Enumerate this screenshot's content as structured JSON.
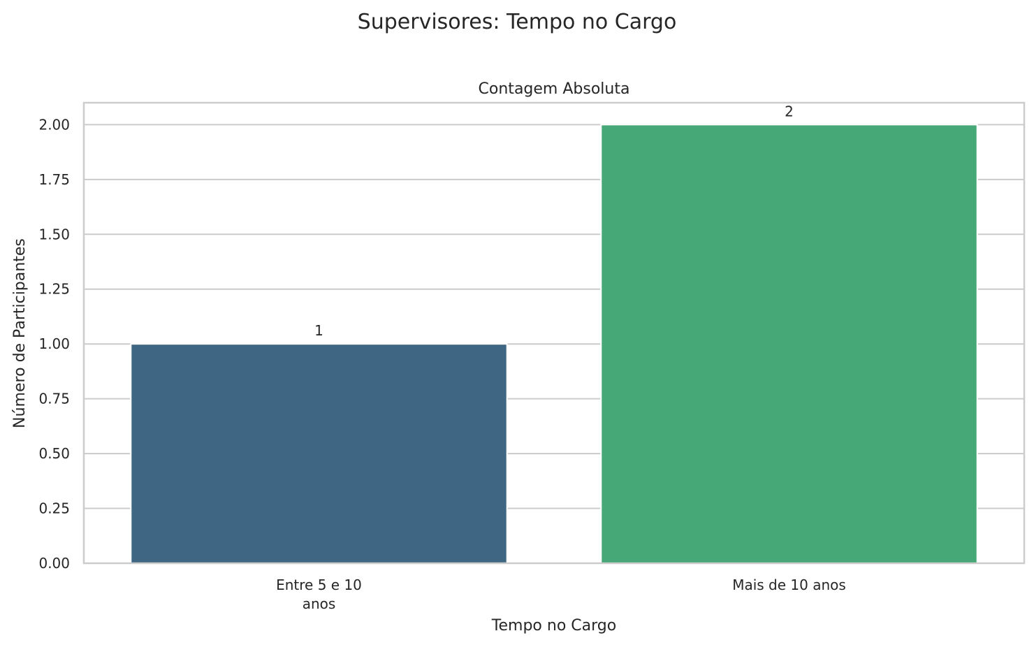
{
  "chart_data": {
    "type": "bar",
    "suptitle": "Supervisores: Tempo no Cargo",
    "title": "Contagem Absoluta",
    "xlabel": "Tempo no Cargo",
    "ylabel": "Número de Participantes",
    "categories": [
      [
        "Entre 5 e 10",
        "anos"
      ],
      [
        "Mais de 10 anos"
      ]
    ],
    "values": [
      1,
      2
    ],
    "data_labels": [
      "1",
      "2"
    ],
    "colors": [
      "#3f6783",
      "#46a877"
    ],
    "ylim": [
      0,
      2.1
    ],
    "yticks": [
      0,
      0.25,
      0.5,
      0.75,
      1.0,
      1.25,
      1.5,
      1.75,
      2.0
    ],
    "ytick_labels": [
      "0.00",
      "0.25",
      "0.50",
      "0.75",
      "1.00",
      "1.25",
      "1.50",
      "1.75",
      "2.00"
    ],
    "grid": true,
    "grid_color": "#cccccc",
    "frame_color": "#cccccc"
  }
}
